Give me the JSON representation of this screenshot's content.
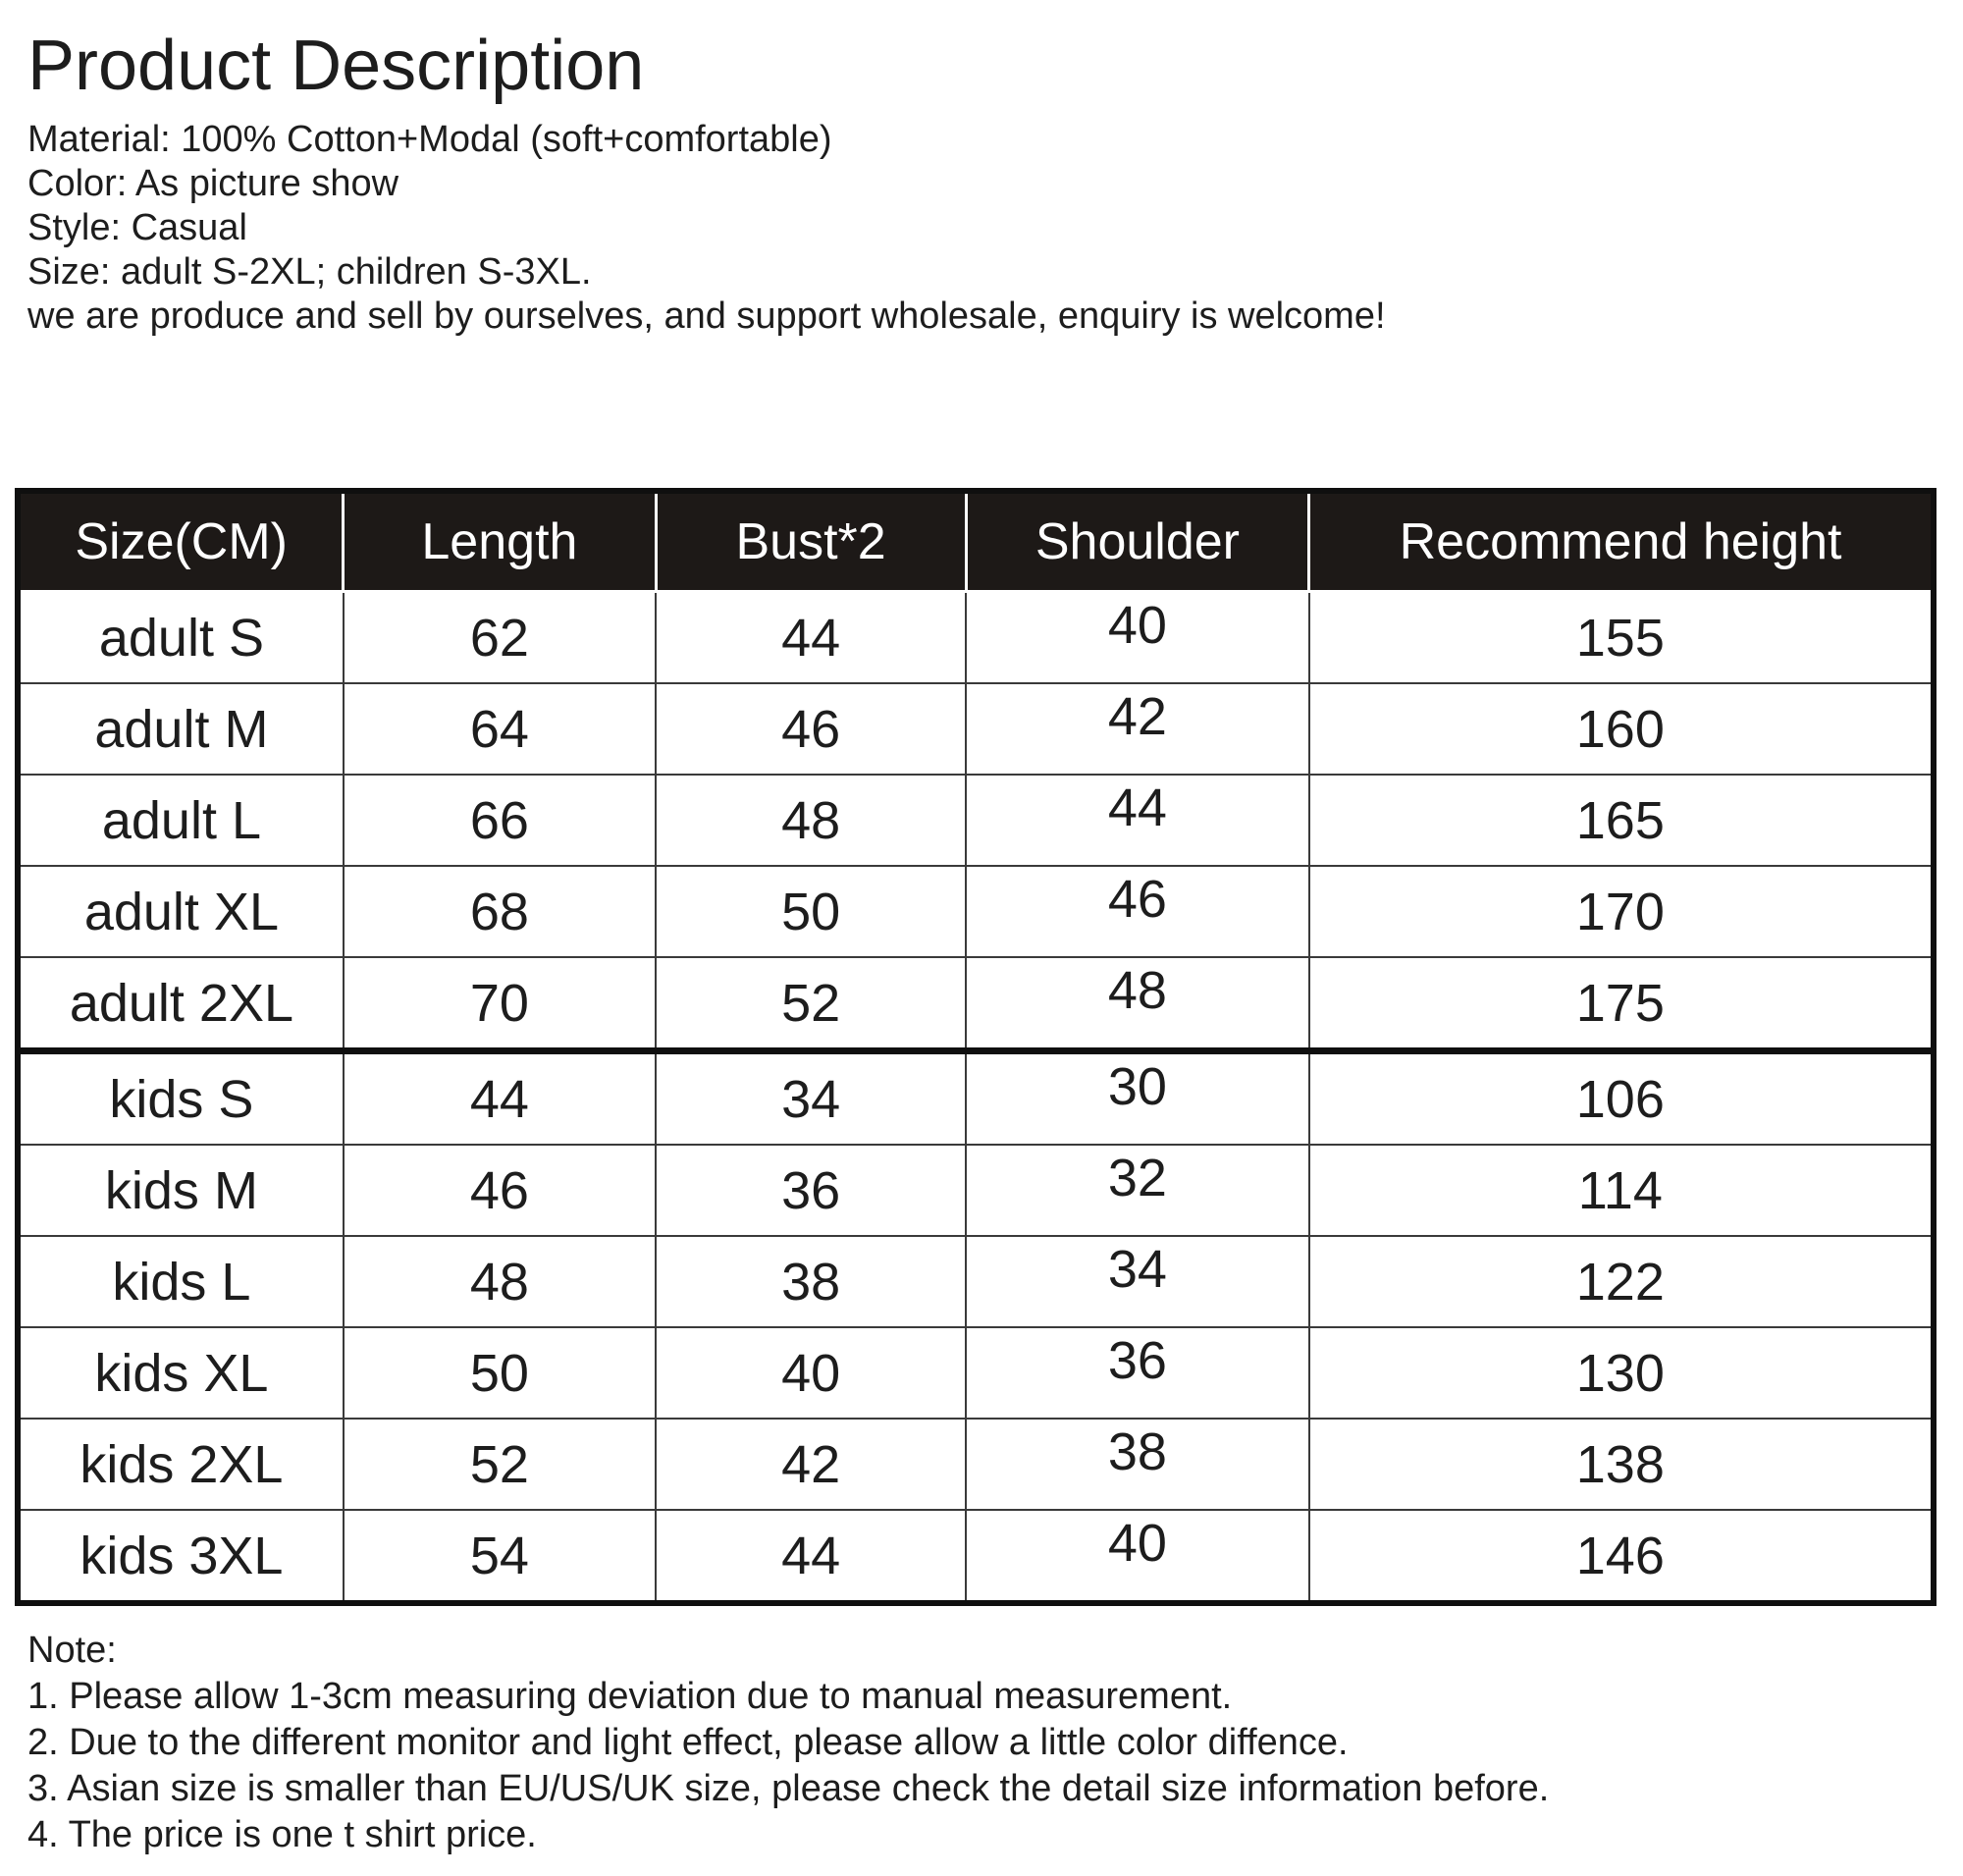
{
  "title": "Product Description",
  "description": {
    "lines": [
      "Material: 100% Cotton+Modal (soft+comfortable)",
      "Color: As picture show",
      "Style: Casual",
      "Size: adult S-2XL; children S-3XL.",
      "we are produce and sell by ourselves, and support wholesale, enquiry is welcome!"
    ]
  },
  "size_table": {
    "headers": [
      "Size(CM)",
      "Length",
      "Bust*2",
      "Shoulder",
      "Recommend height"
    ],
    "column_keys": [
      "size",
      "length",
      "bust",
      "shoulder",
      "height"
    ],
    "column_widths_pct": [
      17.0,
      16.3,
      16.2,
      17.9,
      32.6
    ],
    "rows": [
      {
        "group": "adult",
        "cells": [
          "adult S",
          "62",
          "44",
          "40",
          "155"
        ]
      },
      {
        "group": "adult",
        "cells": [
          "adult M",
          "64",
          "46",
          "42",
          "160"
        ]
      },
      {
        "group": "adult",
        "cells": [
          "adult L",
          "66",
          "48",
          "44",
          "165"
        ]
      },
      {
        "group": "adult",
        "cells": [
          "adult XL",
          "68",
          "50",
          "46",
          "170"
        ]
      },
      {
        "group": "adult",
        "cells": [
          "adult 2XL",
          "70",
          "52",
          "48",
          "175"
        ]
      },
      {
        "group": "kids",
        "cells": [
          "kids S",
          "44",
          "34",
          "30",
          "106"
        ]
      },
      {
        "group": "kids",
        "cells": [
          "kids M",
          "46",
          "36",
          "32",
          "114"
        ]
      },
      {
        "group": "kids",
        "cells": [
          "kids L",
          "48",
          "38",
          "34",
          "122"
        ]
      },
      {
        "group": "kids",
        "cells": [
          "kids XL",
          "50",
          "40",
          "36",
          "130"
        ]
      },
      {
        "group": "kids",
        "cells": [
          "kids 2XL",
          "52",
          "42",
          "38",
          "138"
        ]
      },
      {
        "group": "kids",
        "cells": [
          "kids 3XL",
          "54",
          "44",
          "40",
          "146"
        ]
      }
    ]
  },
  "notes": {
    "heading": "Note:",
    "items": [
      "1. Please allow 1-3cm measuring deviation due to manual measurement.",
      "2. Due to the different monitor and light effect, please allow a little color diffence.",
      "3. Asian size is smaller than EU/US/UK size, please check the detail size information before.",
      "4. The price is one t shirt price."
    ]
  },
  "colors": {
    "header_bg": "#1d1917",
    "header_text": "#ffffff",
    "body_text": "#1d1d1d",
    "grid_line": "#3a3a3a",
    "heavy_line": "#0f0f0f",
    "page_bg": "#ffffff"
  }
}
